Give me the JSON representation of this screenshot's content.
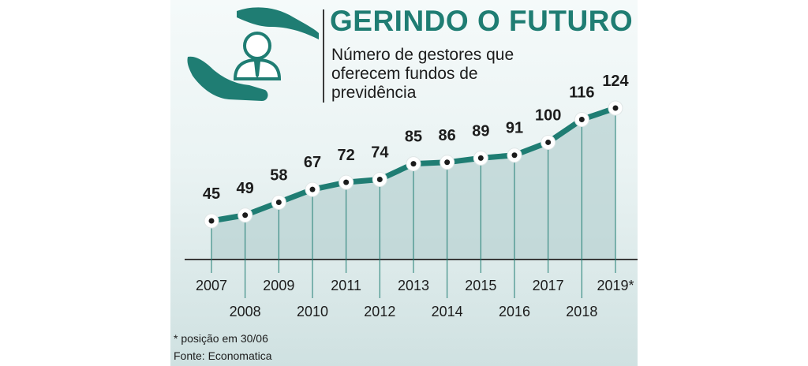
{
  "title": "GERINDO O FUTURO",
  "subtitle": "Número de gestores que oferecem fundos de previdência",
  "footnote": "* posição em 30/06",
  "source": "Fonte: Economatica",
  "icon": "hands-protecting-person-icon",
  "colors": {
    "line": "#1f7d73",
    "title": "#1f7d73",
    "area": "#b9d3d3",
    "marker_fill": "#ffffff",
    "marker_dot": "#1c1c1c"
  },
  "chart_data": {
    "type": "line",
    "title": "GERINDO O FUTURO",
    "subtitle": "Número de gestores que oferecem fundos de previdência",
    "categories": [
      "2007",
      "2008",
      "2009",
      "2010",
      "2011",
      "2012",
      "2013",
      "2014",
      "2015",
      "2016",
      "2017",
      "2018",
      "2019*"
    ],
    "values": [
      45,
      49,
      58,
      67,
      72,
      74,
      85,
      86,
      89,
      91,
      100,
      116,
      124
    ],
    "grid": false,
    "data_labels": true
  }
}
